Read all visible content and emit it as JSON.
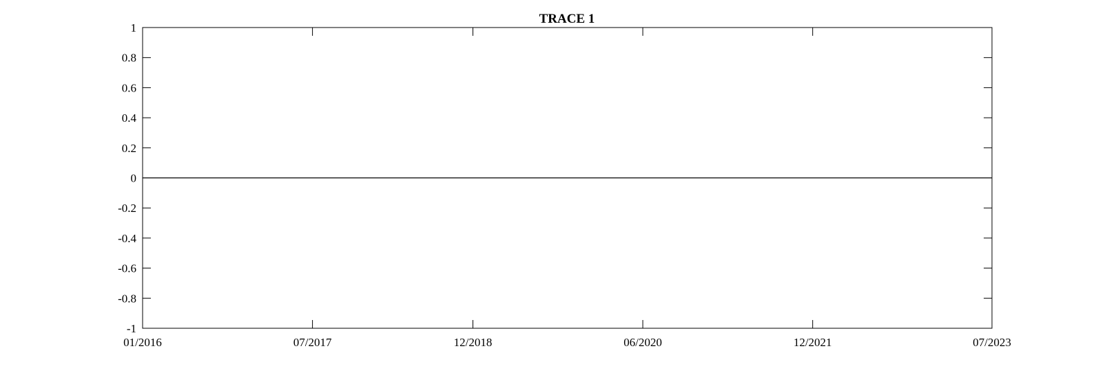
{
  "chart_data": {
    "type": "line",
    "title": "TRACE 1",
    "xlabel": "",
    "ylabel": "",
    "x_ticks": [
      "01/2016",
      "07/2017",
      "12/2018",
      "06/2020",
      "12/2021",
      "07/2023"
    ],
    "xlim": [
      "01/2016",
      "07/2023"
    ],
    "ylim": [
      -1,
      1
    ],
    "y_ticks": [
      -1,
      -0.8,
      -0.6,
      -0.4,
      -0.2,
      0,
      0.2,
      0.4,
      0.6,
      0.8,
      1
    ],
    "grid": false,
    "series": [
      {
        "x": [
          "01/2016",
          "07/2023"
        ],
        "values": [
          0,
          0
        ],
        "color": "#000000"
      }
    ]
  }
}
